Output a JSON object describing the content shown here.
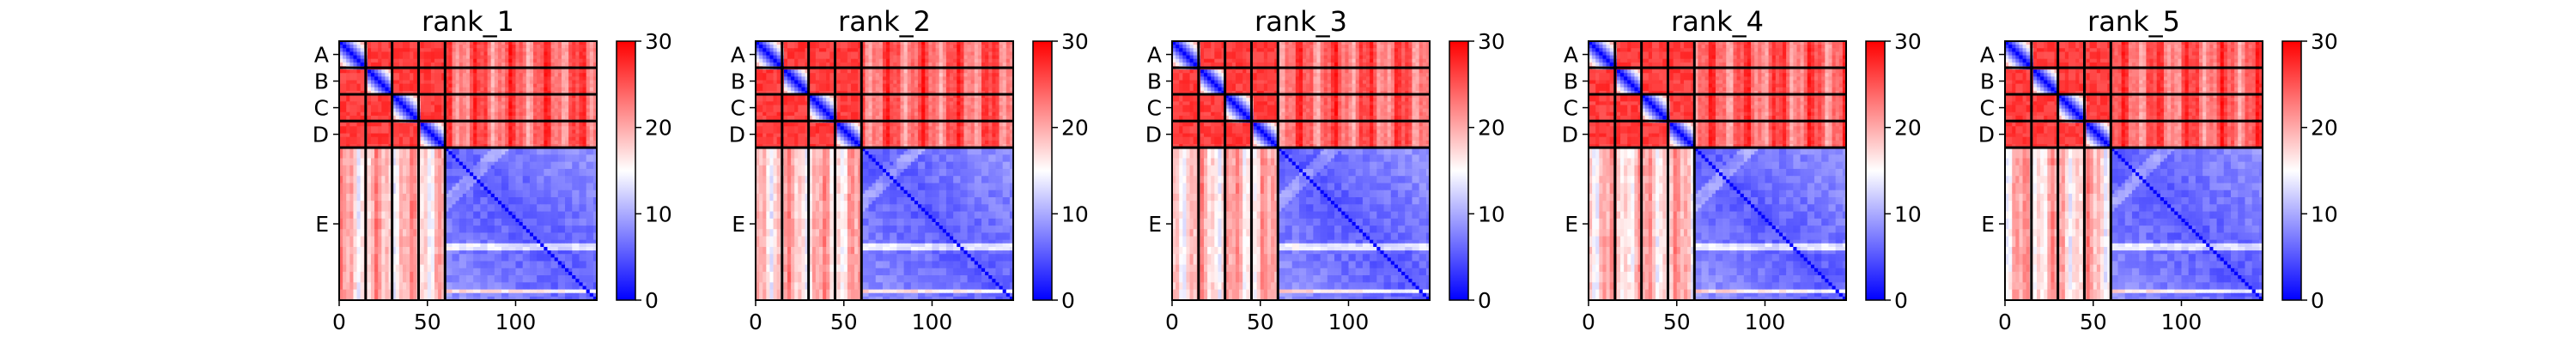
{
  "chart_data": [
    {
      "type": "heatmap",
      "title": "rank_1"
    },
    {
      "type": "heatmap",
      "title": "rank_2"
    },
    {
      "type": "heatmap",
      "title": "rank_3"
    },
    {
      "type": "heatmap",
      "title": "rank_4"
    },
    {
      "type": "heatmap",
      "title": "rank_5"
    }
  ],
  "shared": {
    "chains": [
      "A",
      "B",
      "C",
      "D",
      "E"
    ],
    "chain_boundaries": [
      0,
      15,
      30,
      45,
      60,
      146
    ],
    "x_ticks": [
      "0",
      "50",
      "100"
    ],
    "x_tick_values": [
      0,
      50,
      100
    ],
    "xlim": [
      0,
      146
    ],
    "colorbar": {
      "ticks": [
        "0",
        "10",
        "20",
        "30"
      ],
      "tick_values": [
        0,
        10,
        20,
        30
      ],
      "range": [
        0,
        30
      ],
      "colors": [
        "#0000ff",
        "#ffffff",
        "#ff0000"
      ]
    },
    "description_levels": {
      "diagonal": 0,
      "binder_binder": 27,
      "binder_target": 17,
      "target_target": 4
    }
  }
}
